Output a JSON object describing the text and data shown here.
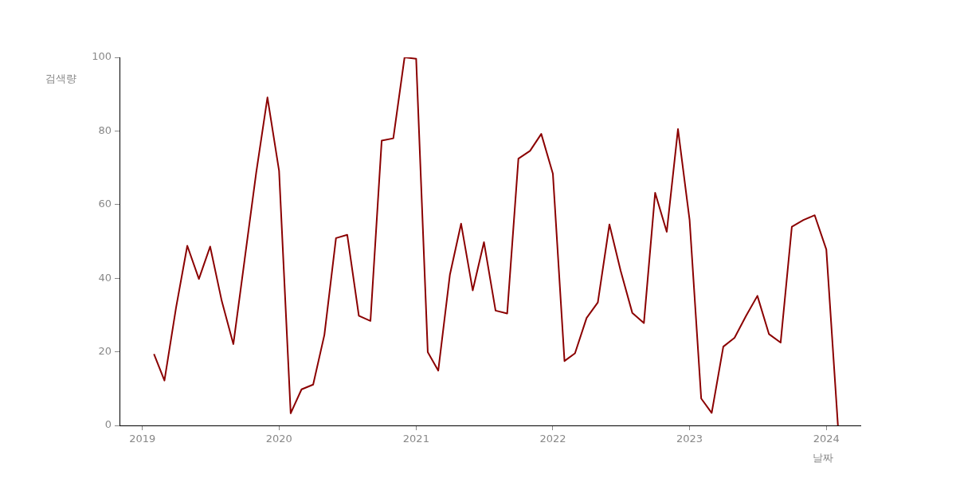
{
  "chart_data": {
    "type": "line",
    "xlabel": "날짜",
    "ylabel": "검색량",
    "x": [
      "2019-02",
      "2019-03",
      "2019-04",
      "2019-05",
      "2019-06",
      "2019-07",
      "2019-08",
      "2019-09",
      "2019-10",
      "2019-11",
      "2019-12",
      "2020-01",
      "2020-02",
      "2020-03",
      "2020-04",
      "2020-05",
      "2020-06",
      "2020-07",
      "2020-08",
      "2020-09",
      "2020-10",
      "2020-11",
      "2020-12",
      "2021-01",
      "2021-02",
      "2021-03",
      "2021-04",
      "2021-05",
      "2021-06",
      "2021-07",
      "2021-08",
      "2021-09",
      "2021-10",
      "2021-11",
      "2021-12",
      "2022-01",
      "2022-02",
      "2022-03",
      "2022-04",
      "2022-05",
      "2022-06",
      "2022-07",
      "2022-08",
      "2022-09",
      "2022-10",
      "2022-11",
      "2022-12",
      "2023-01",
      "2023-02",
      "2023-03",
      "2023-04",
      "2023-05",
      "2023-06",
      "2023-07",
      "2023-08",
      "2023-09",
      "2023-10",
      "2023-11",
      "2023-12",
      "2024-01",
      "2024-02"
    ],
    "series": [
      {
        "color": "#8b0000",
        "values": [
          19.4,
          12.2,
          32,
          48.8,
          39.8,
          48.6,
          33.8,
          22.1,
          45,
          68.7,
          89.1,
          69.2,
          3.3,
          9.8,
          11.1,
          24.6,
          50.9,
          51.8,
          29.8,
          28.4,
          77.4,
          78,
          100,
          99.6,
          19.9,
          14.9,
          40.9,
          54.8,
          36.7,
          49.8,
          31.2,
          30.4,
          72.5,
          74.6,
          79.2,
          68.4,
          17.5,
          19.6,
          29.2,
          33.4,
          54.6,
          42,
          30.6,
          27.8,
          63.2,
          52.6,
          80.5,
          55.8,
          7.3,
          3.4,
          21.4,
          23.8,
          29.8,
          35.2,
          24.8,
          22.5,
          54,
          55.8,
          57.1,
          47.8,
          0
        ]
      }
    ],
    "xlim": [
      "2018-11",
      "2024-04"
    ],
    "xticks": [
      {
        "value": "2019",
        "label": "2019"
      },
      {
        "value": "2020",
        "label": "2020"
      },
      {
        "value": "2021",
        "label": "2021"
      },
      {
        "value": "2022",
        "label": "2022"
      },
      {
        "value": "2023",
        "label": "2023"
      },
      {
        "value": "2024",
        "label": "2024"
      }
    ],
    "ylim": [
      0,
      100
    ],
    "yticks": [
      0,
      20,
      40,
      60,
      80,
      100
    ],
    "grid": false,
    "legend": false,
    "marker": "none",
    "line_style": "solid"
  }
}
